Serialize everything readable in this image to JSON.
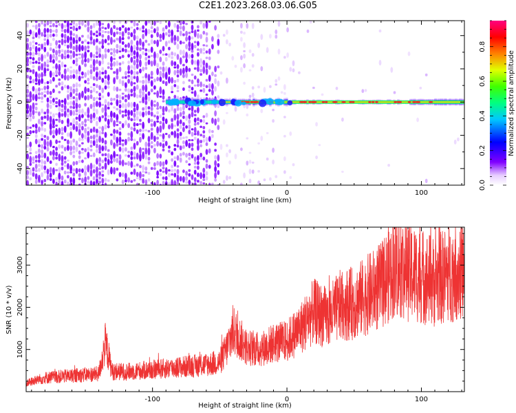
{
  "figure": {
    "title": "C2E1.2023.268.03.06.G05"
  },
  "chart_data": [
    {
      "type": "heatmap",
      "xlabel": "Height of straight line (km)",
      "ylabel": "Frequency (Hz)",
      "xlim": [
        -194,
        132
      ],
      "ylim": [
        -50,
        49
      ],
      "xticks": [
        -100,
        0,
        100
      ],
      "yticks": [
        -40,
        -20,
        0,
        20,
        40
      ],
      "colorbar": {
        "label": "Normalized spectral amplitude",
        "range": [
          0.0,
          0.95
        ],
        "ticks": [
          0.0,
          0.2,
          0.4,
          0.6,
          0.8
        ],
        "colormap": "rainbow (white-purple-blue-cyan-green-yellow-red-pink)"
      },
      "features": {
        "noise_region_x": [
          -194,
          -50
        ],
        "carrier_line_frequency_hz": 0,
        "carrier_strength_x": [
          -90,
          132
        ]
      }
    },
    {
      "type": "line",
      "xlabel": "Height of straight line (km)",
      "ylabel": "SNR (10 * v/v)",
      "xlim": [
        -194,
        132
      ],
      "ylim": [
        0,
        3900
      ],
      "xticks": [
        -100,
        0,
        100
      ],
      "yticks": [
        1000,
        2000,
        3000
      ],
      "series": [
        {
          "color": "#ee3333",
          "x": [
            -194,
            -180,
            -160,
            -140,
            -135,
            -130,
            -120,
            -100,
            -80,
            -60,
            -50,
            -45,
            -40,
            -30,
            -20,
            -10,
            0,
            10,
            20,
            30,
            40,
            50,
            60,
            70,
            80,
            90,
            100,
            110,
            120,
            132
          ],
          "y": [
            200,
            330,
            380,
            420,
            1150,
            480,
            470,
            520,
            580,
            640,
            700,
            1000,
            1450,
            1050,
            1000,
            1150,
            1200,
            1500,
            1900,
            1750,
            2050,
            2100,
            2300,
            2500,
            3000,
            2850,
            2750,
            2600,
            2800,
            2900
          ]
        }
      ]
    }
  ]
}
